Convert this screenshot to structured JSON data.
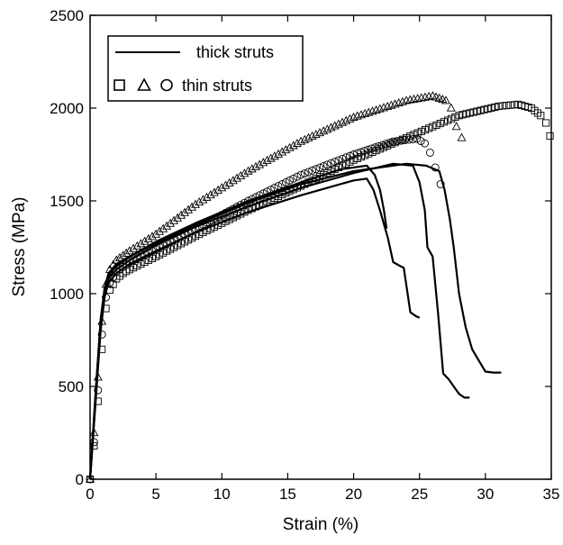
{
  "chart_data": {
    "type": "line",
    "xlabel": "Strain (%)",
    "ylabel": "Stress (MPa)",
    "xlim": [
      0,
      35
    ],
    "ylim": [
      0,
      2500
    ],
    "xticks": [
      "0",
      "5",
      "10",
      "15",
      "20",
      "25",
      "30",
      "35"
    ],
    "yticks": [
      "0",
      "500",
      "1000",
      "1500",
      "2000",
      "2500"
    ],
    "grid": false,
    "legend": {
      "placement": "top-left",
      "entries": [
        {
          "label": "thick struts",
          "style": "solid-line"
        },
        {
          "label": "thin struts",
          "style": "open-markers",
          "markers": [
            "square",
            "triangle",
            "circle"
          ]
        }
      ]
    },
    "series": [
      {
        "style": "solid-line",
        "marker": "none",
        "x": [
          0,
          0.4,
          0.8,
          1.1,
          1.4,
          2,
          3,
          5,
          8,
          12,
          16,
          19,
          21,
          21.6,
          22,
          22.3,
          22.5
        ],
        "y": [
          0,
          450,
          850,
          1020,
          1100,
          1150,
          1200,
          1280,
          1380,
          1500,
          1600,
          1670,
          1690,
          1640,
          1560,
          1450,
          1350
        ]
      },
      {
        "style": "solid-line",
        "marker": "none",
        "x": [
          0,
          0.4,
          0.8,
          1.1,
          1.4,
          2,
          3,
          5,
          8,
          12,
          16,
          20,
          21,
          21.5,
          22,
          22.6,
          23,
          23.5,
          23.8,
          24.1,
          24.3,
          24.7,
          25
        ],
        "y": [
          0,
          400,
          800,
          980,
          1060,
          1110,
          1160,
          1230,
          1330,
          1440,
          1530,
          1610,
          1620,
          1560,
          1450,
          1300,
          1170,
          1150,
          1140,
          1000,
          900,
          880,
          870
        ]
      },
      {
        "style": "solid-line",
        "marker": "none",
        "x": [
          0,
          0.4,
          0.8,
          1.1,
          1.4,
          2,
          3,
          5,
          8,
          12,
          16,
          20,
          23,
          24.5,
          25,
          25.4,
          25.6,
          26,
          26.4,
          26.8,
          27.2,
          27.6,
          28,
          28.4,
          28.8
        ],
        "y": [
          0,
          420,
          830,
          1000,
          1080,
          1130,
          1180,
          1260,
          1360,
          1470,
          1570,
          1650,
          1700,
          1690,
          1600,
          1450,
          1250,
          1200,
          900,
          570,
          540,
          500,
          460,
          440,
          440
        ]
      },
      {
        "style": "solid-line",
        "marker": "none",
        "x": [
          0,
          0.4,
          0.8,
          1.1,
          1.4,
          2,
          3,
          5,
          8,
          12,
          16,
          20,
          24,
          25.5,
          26.5,
          26.9,
          27.3,
          27.6,
          28,
          28.5,
          29,
          29.5,
          30,
          30.6,
          31.2
        ],
        "y": [
          0,
          440,
          860,
          1030,
          1110,
          1160,
          1200,
          1270,
          1370,
          1490,
          1590,
          1660,
          1700,
          1690,
          1660,
          1560,
          1400,
          1250,
          1000,
          820,
          700,
          640,
          580,
          575,
          575
        ]
      },
      {
        "style": "markers",
        "marker": "triangle",
        "x": [
          0,
          0.3,
          0.6,
          0.9,
          1.2,
          1.5,
          2,
          3,
          5,
          8,
          12,
          16,
          20,
          24,
          26,
          27,
          27.4,
          27.8,
          28.2
        ],
        "y": [
          0,
          250,
          550,
          850,
          1050,
          1130,
          1180,
          1230,
          1320,
          1480,
          1660,
          1820,
          1950,
          2040,
          2065,
          2040,
          2000,
          1900,
          1840
        ]
      },
      {
        "style": "markers",
        "marker": "square",
        "x": [
          0,
          0.3,
          0.6,
          0.9,
          1.2,
          1.5,
          2,
          2.5,
          3,
          5,
          8,
          12,
          16,
          20,
          24,
          28,
          31,
          32.5,
          33.5,
          34.2,
          34.6,
          34.9
        ],
        "y": [
          0,
          180,
          420,
          700,
          920,
          1020,
          1080,
          1110,
          1130,
          1200,
          1310,
          1450,
          1580,
          1720,
          1840,
          1960,
          2010,
          2020,
          2000,
          1960,
          1920,
          1850
        ]
      },
      {
        "style": "markers",
        "marker": "circle",
        "x": [
          0,
          0.3,
          0.6,
          0.9,
          1.2,
          1.5,
          2,
          3,
          5,
          8,
          12,
          16,
          20,
          23,
          24.8,
          25.4,
          25.8,
          26.2,
          26.6
        ],
        "y": [
          0,
          200,
          480,
          780,
          980,
          1060,
          1120,
          1170,
          1240,
          1350,
          1500,
          1640,
          1750,
          1820,
          1835,
          1810,
          1760,
          1680,
          1590
        ]
      }
    ]
  }
}
